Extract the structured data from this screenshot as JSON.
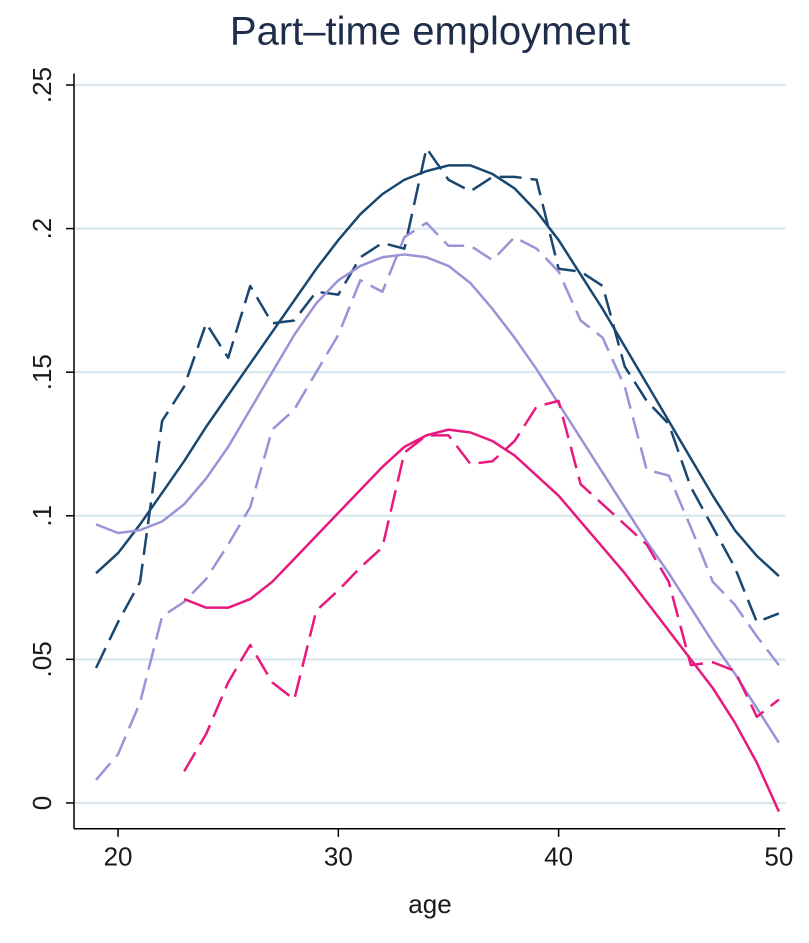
{
  "chart_data": {
    "type": "line",
    "title": "Part–time employment",
    "xlabel": "age",
    "x": [
      19,
      20,
      21,
      22,
      23,
      24,
      25,
      26,
      27,
      28,
      29,
      30,
      31,
      32,
      33,
      34,
      35,
      36,
      37,
      38,
      39,
      40,
      41,
      42,
      43,
      44,
      45,
      46,
      47,
      48,
      49,
      50
    ],
    "xlim": [
      18,
      50.3
    ],
    "xticks": [
      20,
      30,
      40,
      50
    ],
    "ylim": [
      -0.009,
      0.254
    ],
    "yticks": [
      0,
      {
        "value": 0.05,
        "label": ".05"
      },
      {
        "value": 0.1,
        "label": ".1"
      },
      {
        "value": 0.15,
        "label": ".15"
      },
      {
        "value": 0.2,
        "label": ".2"
      },
      {
        "value": 0.25,
        "label": ".25"
      }
    ],
    "grid": true,
    "grid_color": "#dde8ee",
    "series": [
      {
        "color": "#1a476f",
        "dashed": false,
        "values": [
          0.08,
          0.087,
          0.097,
          0.108,
          0.119,
          0.131,
          0.142,
          0.153,
          0.164,
          0.175,
          0.186,
          0.196,
          0.205,
          0.212,
          0.217,
          0.22,
          0.222,
          0.222,
          0.219,
          0.214,
          0.206,
          0.196,
          0.184,
          0.172,
          0.159,
          0.146,
          0.133,
          0.12,
          0.107,
          0.095,
          0.086,
          0.079
        ]
      },
      {
        "color": "#1a476f",
        "dashed": true,
        "values": [
          0.047,
          0.063,
          0.077,
          0.133,
          0.145,
          0.167,
          0.155,
          0.18,
          0.167,
          0.168,
          0.178,
          0.177,
          0.19,
          0.195,
          0.193,
          0.228,
          0.217,
          0.213,
          0.218,
          0.218,
          0.217,
          0.186,
          0.185,
          0.18,
          0.152,
          0.14,
          0.132,
          0.11,
          0.096,
          0.082,
          0.063,
          0.066
        ]
      },
      {
        "color": "#9b92d8",
        "dashed": false,
        "values": [
          0.097,
          0.094,
          0.095,
          0.098,
          0.104,
          0.113,
          0.124,
          0.137,
          0.15,
          0.163,
          0.174,
          0.182,
          0.187,
          0.19,
          0.191,
          0.19,
          0.187,
          0.181,
          0.172,
          0.162,
          0.151,
          0.139,
          0.127,
          0.115,
          0.103,
          0.091,
          0.08,
          0.068,
          0.056,
          0.045,
          0.033,
          0.021
        ]
      },
      {
        "color": "#9b92d8",
        "dashed": true,
        "values": [
          0.008,
          0.017,
          0.035,
          0.065,
          0.07,
          0.078,
          0.09,
          0.103,
          0.13,
          0.137,
          0.15,
          0.163,
          0.182,
          0.178,
          0.197,
          0.202,
          0.194,
          0.194,
          0.189,
          0.197,
          0.193,
          0.185,
          0.168,
          0.162,
          0.145,
          0.116,
          0.114,
          0.096,
          0.077,
          0.069,
          0.058,
          0.048
        ]
      },
      {
        "color": "#e8197e",
        "dashed": false,
        "values": [
          null,
          null,
          null,
          null,
          0.071,
          0.068,
          0.068,
          0.071,
          0.077,
          0.085,
          0.093,
          0.101,
          0.109,
          0.117,
          0.124,
          0.128,
          0.13,
          0.129,
          0.126,
          0.121,
          0.114,
          0.107,
          0.098,
          0.089,
          0.08,
          0.07,
          0.06,
          0.05,
          0.04,
          0.028,
          0.014,
          -0.003
        ]
      },
      {
        "color": "#e8197e",
        "dashed": true,
        "values": [
          null,
          null,
          null,
          null,
          0.011,
          0.024,
          0.042,
          0.055,
          0.042,
          0.036,
          0.067,
          0.074,
          0.082,
          0.089,
          0.122,
          0.128,
          0.128,
          0.118,
          0.119,
          0.126,
          0.138,
          0.14,
          0.111,
          0.104,
          0.097,
          0.09,
          0.077,
          0.048,
          0.049,
          0.046,
          0.03,
          0.036
        ]
      }
    ]
  }
}
